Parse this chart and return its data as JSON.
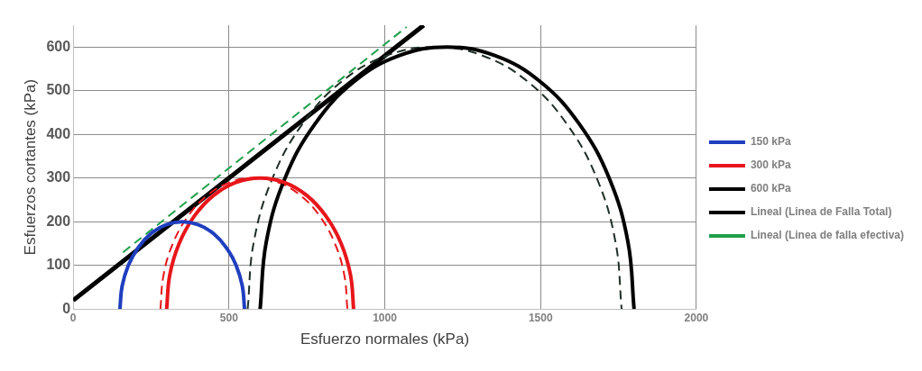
{
  "chart_data": {
    "type": "line",
    "xlabel": "Esfuerzo normales (kPa)",
    "ylabel": "Esfuerzos cortantes (kPa)",
    "xlim": [
      0,
      2000
    ],
    "xticks": [
      0,
      500,
      1000,
      1500,
      2000
    ],
    "ylim": [
      0,
      650
    ],
    "yticks": [
      0,
      100,
      200,
      300,
      400,
      500,
      600
    ],
    "grid": true,
    "legend": "right",
    "marker": "none",
    "series": [
      {
        "name": "150 kPa",
        "color": "#1f3fbf",
        "line_style": "solid",
        "x": [
          150,
          157,
          177,
          209,
          250,
          298,
          350,
          402,
          450,
          491,
          523,
          543,
          550
        ],
        "values": [
          0,
          52,
          100,
          141,
          173,
          193,
          200,
          193,
          173,
          141,
          100,
          52,
          0
        ]
      },
      {
        "name": "300 kPa",
        "color": "#e8161b",
        "line_style": "solid",
        "x": [
          300,
          310,
          340,
          388,
          450,
          522,
          600,
          678,
          750,
          812,
          860,
          890,
          900
        ],
        "values": [
          0,
          78,
          150,
          212,
          260,
          290,
          300,
          290,
          260,
          212,
          150,
          78,
          0
        ]
      },
      {
        "name": "600 kPa",
        "color": "#000000",
        "line_style": "solid",
        "x": [
          600,
          620,
          680,
          776,
          900,
          1045,
          1200,
          1355,
          1500,
          1624,
          1720,
          1780,
          1800
        ],
        "values": [
          0,
          155,
          300,
          424,
          520,
          580,
          600,
          580,
          520,
          424,
          300,
          155,
          0
        ]
      },
      {
        "color": "#e8161b",
        "line_style": "dashed",
        "x": [
          280,
          290,
          320,
          368,
          430,
          502,
          580,
          658,
          730,
          792,
          840,
          870,
          880
        ],
        "values": [
          0,
          78,
          150,
          212,
          260,
          290,
          300,
          290,
          260,
          212,
          150,
          78,
          0
        ]
      },
      {
        "color": "#1f2f25",
        "line_style": "dashed",
        "x": [
          560,
          580,
          640,
          736,
          860,
          1005,
          1160,
          1315,
          1460,
          1584,
          1680,
          1740,
          1760
        ],
        "values": [
          0,
          155,
          300,
          424,
          520,
          580,
          600,
          580,
          520,
          424,
          300,
          155,
          0
        ]
      },
      {
        "name": "Lineal (Linea de Falla Total)",
        "color": "#000000",
        "line_style": "solid",
        "x": [
          0,
          1125
        ],
        "values": [
          20,
          650
        ]
      },
      {
        "name": "Lineal (Linea de falla efectiva)",
        "color": "#1fa04a",
        "line_style": "dashed",
        "x": [
          160,
          1070
        ],
        "values": [
          130,
          646
        ]
      }
    ]
  }
}
